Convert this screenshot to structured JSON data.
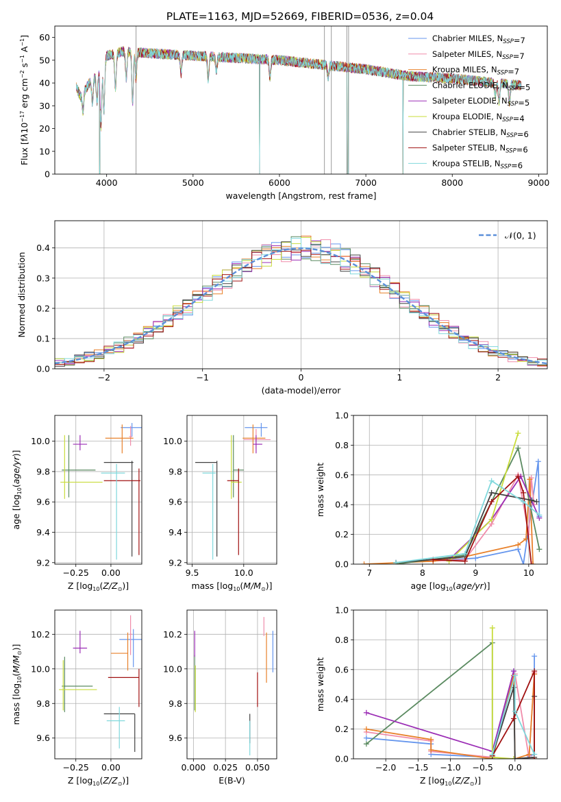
{
  "figure_title": "PLATE=1163, MJD=52669, FIBERID=0536, z=0.04",
  "colors": {
    "series": [
      "#6495ed",
      "#f08caa",
      "#e8812a",
      "#5a8a60",
      "#9b2db5",
      "#c8dc3a",
      "#404040",
      "#a01010",
      "#7fd8dc"
    ],
    "gaussian": "#5b8fd9",
    "grid": "#b0b0b0"
  },
  "series_names": [
    "Chabrier MILES, N<sub>SSP</sub>=7",
    "Salpeter MILES, N<sub>SSP</sub>=7",
    "Kroupa MILES, N<sub>SSP</sub>=7",
    "Chabrier ELODIE, N<sub>SSP</sub>=5",
    "Salpeter ELODIE, N<sub>SSP</sub>=5",
    "Kroupa ELODIE, N<sub>SSP</sub>=4",
    "Chabrier STELIB, N<sub>SSP</sub>=6",
    "Salpeter STELIB, N<sub>SSP</sub>=6",
    "Kroupa STELIB, N<sub>SSP</sub>=6"
  ],
  "chart_data": [
    {
      "id": "spectrum",
      "type": "line",
      "title": "PLATE=1163, MJD=52669, FIBERID=0536, z=0.04",
      "xlabel": "wavelength [Angstrom, rest frame]",
      "ylabel": "Flux [f<tspan font-style='italic'>λ</tspan>10<tspan dy='-5' font-size='8'>−17</tspan><tspan dy='5'> erg cm</tspan><tspan dy='-5' font-size='8'>−2</tspan><tspan dy='5'> s</tspan><tspan dy='-5' font-size='8'>−1</tspan><tspan dy='5'> A</tspan><tspan dy='-5' font-size='8'>−1</tspan><tspan dy='5'>]</tspan>",
      "xlim": [
        3400,
        9100
      ],
      "ylim": [
        0,
        65
      ],
      "xticks": [
        4000,
        5000,
        6000,
        7000,
        8000,
        9000
      ],
      "yticks": [
        0,
        10,
        20,
        30,
        40,
        50,
        60
      ],
      "legend_position": "upper-right",
      "data_span": [
        3650,
        8800
      ],
      "continuum": [
        [
          3650,
          38
        ],
        [
          3700,
          34
        ],
        [
          3800,
          40
        ],
        [
          3900,
          44
        ],
        [
          4000,
          52
        ],
        [
          4200,
          54
        ],
        [
          4500,
          53
        ],
        [
          5000,
          52
        ],
        [
          5500,
          51
        ],
        [
          6000,
          50
        ],
        [
          6500,
          48
        ],
        [
          7000,
          46
        ],
        [
          7500,
          43
        ],
        [
          8000,
          42
        ],
        [
          8500,
          40
        ],
        [
          8800,
          39
        ]
      ],
      "absorption_lines": [
        [
          3727,
          8
        ],
        [
          3835,
          10
        ],
        [
          3889,
          12
        ],
        [
          3934,
          26
        ],
        [
          3969,
          22
        ],
        [
          4102,
          15
        ],
        [
          4227,
          12
        ],
        [
          4300,
          22
        ],
        [
          4340,
          12
        ],
        [
          4861,
          8
        ],
        [
          5175,
          10
        ],
        [
          5270,
          6
        ],
        [
          5890,
          8
        ],
        [
          6563,
          5
        ],
        [
          8498,
          6
        ],
        [
          8542,
          8
        ],
        [
          8662,
          8
        ]
      ],
      "dropouts": [
        [
          3920,
          5
        ],
        [
          5770,
          3
        ],
        [
          6790,
          6
        ],
        [
          7430,
          2
        ]
      ],
      "grey_spikes": [
        4340,
        6520,
        6600,
        6780,
        6800
      ]
    },
    {
      "id": "residuals",
      "type": "step-histogram",
      "xlabel": "(data-model)/error",
      "ylabel": "Normed distribution",
      "xlim": [
        -2.5,
        2.5
      ],
      "ylim": [
        0,
        0.49
      ],
      "xticks": [
        -2,
        -1,
        0,
        1,
        2
      ],
      "yticks": [
        0.0,
        0.1,
        0.2,
        0.3,
        0.4
      ],
      "bin_width": 0.1,
      "gaussian_label": "𝒩(0, 1)",
      "legend_position": "upper-right"
    },
    {
      "id": "age-vs-Z",
      "type": "errorbar",
      "xlabel": "Z [log<tspan dy='3' font-size='8'>10</tspan><tspan dy='-3'>(</tspan><tspan font-style='italic'>Z/Z</tspan><tspan dy='3' font-size='8'>⊙</tspan><tspan dy='-3'>)]</tspan>",
      "ylabel": "age  [log<tspan dy='3' font-size='8'>10</tspan><tspan dy='-3'>(</tspan><tspan font-style='italic'>age/yr</tspan>)]",
      "xlim": [
        -0.4,
        0.22
      ],
      "ylim": [
        9.19,
        10.17
      ],
      "xticks": [
        -0.25,
        0.0
      ],
      "yticks": [
        9.2,
        9.4,
        9.6,
        9.8,
        10.0
      ],
      "points": [
        {
          "x": 0.15,
          "y": 10.09,
          "xerr": [
            0.08,
            0.08
          ],
          "yerr": [
            0.06,
            0.03
          ]
        },
        {
          "x": 0.14,
          "y": 10.03,
          "xerr": [
            0.01,
            0.01
          ],
          "yerr": [
            0.06,
            0.07
          ]
        },
        {
          "x": 0.08,
          "y": 10.02,
          "xerr": [
            0.12,
            0.08
          ],
          "yerr": [
            0.1,
            0.09
          ]
        },
        {
          "x": -0.3,
          "y": 9.81,
          "xerr": [
            0.05,
            0.19
          ],
          "yerr": [
            0.18,
            0.23
          ]
        },
        {
          "x": -0.22,
          "y": 9.98,
          "xerr": [
            0.05,
            0.05
          ],
          "yerr": [
            0.04,
            0.06
          ]
        },
        {
          "x": -0.33,
          "y": 9.73,
          "xerr": [
            0.03,
            0.27
          ],
          "yerr": [
            0.11,
            0.31
          ]
        },
        {
          "x": 0.15,
          "y": 9.86,
          "xerr": [
            0.2,
            0.01
          ],
          "yerr": [
            0.62,
            0.01
          ]
        },
        {
          "x": 0.2,
          "y": 9.74,
          "xerr": [
            0.25,
            0.01
          ],
          "yerr": [
            0.49,
            0.08
          ]
        },
        {
          "x": 0.04,
          "y": 9.79,
          "xerr": [
            0.11,
            0.06
          ],
          "yerr": [
            0.57,
            0.06
          ]
        }
      ]
    },
    {
      "id": "age-vs-mass",
      "type": "errorbar",
      "xlabel": "mass [log<tspan dy='3' font-size='8'>10</tspan><tspan dy='-3'>(</tspan><tspan font-style='italic'>M/M</tspan><tspan dy='3' font-size='8'>⊙</tspan><tspan dy='-3'>)]</tspan>",
      "ylabel": "",
      "xlim": [
        9.45,
        10.32
      ],
      "ylim": [
        9.19,
        10.17
      ],
      "xticks": [
        9.5,
        10.0
      ],
      "yticks": [
        9.2,
        9.4,
        9.6,
        9.8,
        10.0
      ],
      "points": [
        {
          "x": 10.17,
          "y": 10.09,
          "xerr": [
            0.16,
            0.06
          ],
          "yerr": [
            0.06,
            0.03
          ]
        },
        {
          "x": 10.12,
          "y": 10.01,
          "xerr": [
            0.12,
            0.14
          ],
          "yerr": [
            0.06,
            0.07
          ]
        },
        {
          "x": 10.09,
          "y": 10.02,
          "xerr": [
            0.1,
            0.12
          ],
          "yerr": [
            0.1,
            0.09
          ]
        },
        {
          "x": 9.9,
          "y": 9.81,
          "xerr": [
            0.0,
            0.1
          ],
          "yerr": [
            0.18,
            0.23
          ]
        },
        {
          "x": 10.12,
          "y": 9.98,
          "xerr": [
            0.03,
            0.06
          ],
          "yerr": [
            0.06,
            0.06
          ]
        },
        {
          "x": 9.88,
          "y": 9.73,
          "xerr": [
            0.0,
            0.1
          ],
          "yerr": [
            0.11,
            0.31
          ]
        },
        {
          "x": 9.74,
          "y": 9.86,
          "xerr": [
            0.21,
            0.0
          ],
          "yerr": [
            0.62,
            0.01
          ]
        },
        {
          "x": 9.95,
          "y": 9.74,
          "xerr": [
            0.11,
            0.0
          ],
          "yerr": [
            0.49,
            0.08
          ]
        },
        {
          "x": 9.7,
          "y": 9.79,
          "xerr": [
            0.1,
            0.03
          ],
          "yerr": [
            0.57,
            0.06
          ]
        }
      ]
    },
    {
      "id": "weight-vs-age",
      "type": "line",
      "xlabel": "age  [log<tspan dy='3' font-size='8'>10</tspan><tspan dy='-3'>(</tspan><tspan font-style='italic'>age/yr</tspan>)]",
      "ylabel": "mass weight",
      "xlim": [
        6.7,
        10.35
      ],
      "ylim": [
        0,
        1.0
      ],
      "xticks": [
        7,
        8,
        9,
        10
      ],
      "yticks": [
        0.0,
        0.2,
        0.4,
        0.6,
        0.8,
        1.0
      ],
      "series": [
        {
          "x": [
            7.5,
            9.0,
            9.8,
            9.9,
            10.18,
            10.2
          ],
          "y": [
            0.01,
            0.04,
            0.1,
            0.0,
            0.69,
            0.32
          ]
        },
        {
          "x": [
            7.5,
            8.8,
            9.3,
            9.8,
            10.0,
            10.05,
            10.1
          ],
          "y": [
            0.01,
            0.03,
            0.27,
            0.6,
            0.2,
            0.58,
            0.4
          ]
        },
        {
          "x": [
            6.9,
            8.2,
            8.8,
            9.8,
            9.95,
            10.02,
            10.08
          ],
          "y": [
            0.0,
            0.02,
            0.05,
            0.13,
            0.17,
            0.57,
            0.0
          ]
        },
        {
          "x": [
            7.5,
            8.8,
            9.8,
            10.2
          ],
          "y": [
            0.0,
            0.06,
            0.78,
            0.1
          ]
        },
        {
          "x": [
            8.5,
            9.3,
            9.85,
            10.2
          ],
          "y": [
            0.03,
            0.3,
            0.59,
            0.31
          ]
        },
        {
          "x": [
            8.5,
            9.3,
            9.8
          ],
          "y": [
            0.02,
            0.3,
            0.88
          ]
        },
        {
          "x": [
            7.5,
            8.8,
            9.3,
            10.05,
            10.15
          ],
          "y": [
            0.01,
            0.05,
            0.48,
            0.43,
            0.42
          ]
        },
        {
          "x": [
            8.2,
            8.8,
            9.3,
            9.8,
            9.9,
            10.05
          ],
          "y": [
            0.03,
            0.02,
            0.42,
            0.59,
            0.48,
            0.0
          ]
        },
        {
          "x": [
            7.5,
            8.8,
            9.3,
            9.9,
            10.2
          ],
          "y": [
            0.01,
            0.07,
            0.56,
            0.42,
            0.33
          ]
        }
      ]
    },
    {
      "id": "mass-vs-Z",
      "type": "errorbar",
      "xlabel": "Z [log<tspan dy='3' font-size='8'>10</tspan><tspan dy='-3'>(</tspan><tspan font-style='italic'>Z/Z</tspan><tspan dy='3' font-size='8'>⊙</tspan><tspan dy='-3'>)]</tspan>",
      "ylabel": "mass [log<tspan dy='3' font-size='8'>10</tspan><tspan dy='-3'>(</tspan><tspan font-style='italic'>M/M</tspan><tspan dy='3' font-size='8'>⊙</tspan><tspan dy='-3'>)]</tspan>",
      "xlim": [
        -0.4,
        0.22
      ],
      "ylim": [
        9.48,
        10.34
      ],
      "xticks": [
        -0.25,
        0.0
      ],
      "yticks": [
        9.6,
        9.8,
        10.0,
        10.2
      ],
      "points": [
        {
          "x": 0.16,
          "y": 10.17,
          "xerr": [
            0.1,
            0.06
          ],
          "yerr": [
            0.16,
            0.06
          ]
        },
        {
          "x": 0.14,
          "y": 10.2,
          "xerr": [
            0.01,
            0.01
          ],
          "yerr": [
            0.12,
            0.11
          ]
        },
        {
          "x": 0.12,
          "y": 10.09,
          "xerr": [
            0.12,
            0.0
          ],
          "yerr": [
            0.1,
            0.12
          ]
        },
        {
          "x": -0.33,
          "y": 9.9,
          "xerr": [
            0.02,
            0.2
          ],
          "yerr": [
            0.15,
            0.17
          ]
        },
        {
          "x": -0.22,
          "y": 10.12,
          "xerr": [
            0.05,
            0.05
          ],
          "yerr": [
            0.03,
            0.1
          ]
        },
        {
          "x": -0.34,
          "y": 9.88,
          "xerr": [
            0.03,
            0.24
          ],
          "yerr": [
            0.12,
            0.17
          ]
        },
        {
          "x": 0.17,
          "y": 9.74,
          "xerr": [
            0.22,
            0.0
          ],
          "yerr": [
            0.22,
            0.0
          ]
        },
        {
          "x": 0.2,
          "y": 9.95,
          "xerr": [
            0.22,
            0.0
          ],
          "yerr": [
            0.17,
            0.05
          ]
        },
        {
          "x": 0.06,
          "y": 9.7,
          "xerr": [
            0.09,
            0.04
          ],
          "yerr": [
            0.16,
            0.08
          ]
        }
      ]
    },
    {
      "id": "mass-vs-EBV",
      "type": "errorbar",
      "xlabel": "E(B-V)",
      "ylabel": "",
      "xlim": [
        -0.005,
        0.065
      ],
      "ylim": [
        9.48,
        10.34
      ],
      "xticks": [
        0.0,
        0.025,
        0.05
      ],
      "yticks": [
        9.6,
        9.8,
        10.0,
        10.2
      ],
      "points": [
        {
          "x": 0.062,
          "y": 10.1,
          "xerr": [
            0,
            0
          ],
          "yerr": [
            0.12,
            0.12
          ]
        },
        {
          "x": 0.055,
          "y": 10.25,
          "xerr": [
            0,
            0
          ],
          "yerr": [
            0.06,
            0.05
          ]
        },
        {
          "x": 0.057,
          "y": 10.09,
          "xerr": [
            0,
            0
          ],
          "yerr": [
            0.17,
            0.12
          ]
        },
        {
          "x": 0.001,
          "y": 9.92,
          "xerr": [
            0,
            0
          ],
          "yerr": [
            0.16,
            0.16
          ]
        },
        {
          "x": 0.001,
          "y": 10.12,
          "xerr": [
            0,
            0
          ],
          "yerr": [
            0.05,
            0.1
          ]
        },
        {
          "x": 0.0015,
          "y": 9.88,
          "xerr": [
            0,
            0
          ],
          "yerr": [
            0.13,
            0.14
          ]
        },
        {
          "x": 0.044,
          "y": 9.6,
          "xerr": [
            0,
            0
          ],
          "yerr": [
            0.03,
            0.14
          ]
        },
        {
          "x": 0.05,
          "y": 9.88,
          "xerr": [
            0,
            0
          ],
          "yerr": [
            0.1,
            0.1
          ]
        },
        {
          "x": 0.044,
          "y": 9.6,
          "xerr": [
            0,
            0
          ],
          "yerr": [
            0.1,
            0.1
          ]
        }
      ]
    },
    {
      "id": "weight-vs-Z",
      "type": "line",
      "xlabel": "Z [log<tspan dy='3' font-size='8'>10</tspan><tspan dy='-3'>(</tspan><tspan font-style='italic'>Z/Z</tspan><tspan dy='3' font-size='8'>⊙</tspan><tspan dy='-3'>)]</tspan>",
      "ylabel": "mass weight",
      "xlim": [
        -2.5,
        0.5
      ],
      "ylim": [
        0,
        1.0
      ],
      "xticks": [
        -2.0,
        -1.5,
        -1.0,
        -0.5,
        0.0
      ],
      "yticks": [
        0.0,
        0.2,
        0.4,
        0.6,
        0.8,
        1.0
      ],
      "series": [
        {
          "x": [
            -2.3,
            -1.3,
            -1.3,
            -0.35,
            -0.02,
            0.0,
            0.2,
            0.22,
            0.3,
            0.3
          ],
          "y": [
            0.14,
            0.1,
            0.03,
            0.01,
            0.59,
            0.0,
            0.0,
            0.02,
            0.03,
            0.69
          ]
        },
        {
          "x": [
            -2.3,
            -1.3,
            -1.3,
            -0.35,
            0.0,
            0.22,
            0.22,
            0.3
          ],
          "y": [
            0.18,
            0.12,
            0.05,
            0.01,
            0.57,
            0.0,
            0.02,
            0.58
          ]
        },
        {
          "x": [
            -2.3,
            -1.3,
            -1.3,
            -0.35,
            -0.02,
            0.0,
            0.22,
            0.3,
            0.3
          ],
          "y": [
            0.2,
            0.13,
            0.06,
            0.0,
            0.56,
            0.0,
            0.03,
            0.57,
            0.0
          ]
        },
        {
          "x": [
            -2.3,
            -0.35,
            -0.35
          ],
          "y": [
            0.1,
            0.78,
            0.0
          ]
        },
        {
          "x": [
            -2.3,
            -0.35,
            -0.02
          ],
          "y": [
            0.31,
            0.05,
            0.59
          ]
        },
        {
          "x": [
            -0.35,
            -0.35,
            -0.02
          ],
          "y": [
            0.88,
            0.01,
            0.0
          ]
        },
        {
          "x": [
            -0.35,
            -0.02,
            0.0,
            0.3,
            0.3
          ],
          "y": [
            0.02,
            0.48,
            0.0,
            0.01,
            0.42
          ]
        },
        {
          "x": [
            -0.35,
            -0.02,
            0.3,
            0.3
          ],
          "y": [
            0.02,
            0.27,
            0.59,
            0.0
          ]
        },
        {
          "x": [
            -0.35,
            0.0,
            0.0,
            0.3
          ],
          "y": [
            0.03,
            0.56,
            0.32,
            0.03
          ]
        }
      ]
    }
  ]
}
